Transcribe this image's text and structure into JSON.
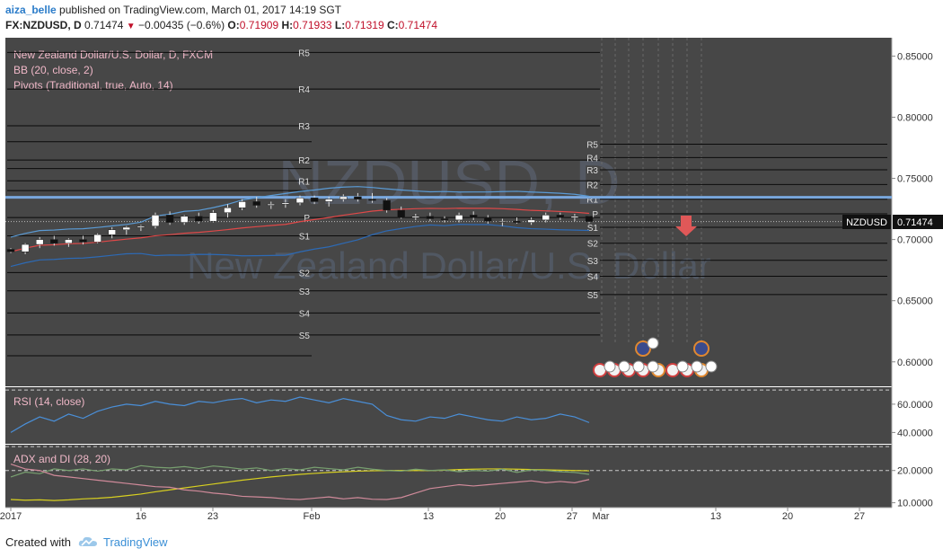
{
  "header": {
    "author": "aiza_belle",
    "published_text": "published on TradingView.com, March 01, 2017 14:19 SGT",
    "symbol": "FX:NZDUSD, D",
    "last": "0.71474",
    "change": "−0.00435 (−0.6%)",
    "o_label": "O:",
    "o_value": "0.71909",
    "h_label": "H:",
    "h_value": "0.71933",
    "l_label": "L:",
    "l_value": "0.71319",
    "c_label": "C:",
    "c_value": "0.71474"
  },
  "legend": {
    "title": "New Zealand Dollar/U.S. Dollar, D, FXCM",
    "bb": "BB (20, close, 2)",
    "pivots": "Pivots (Traditional, true, Auto, 14)"
  },
  "watermark": {
    "big": "NZDUSD, D",
    "small": "New Zealand Dollar/U.S. Dollar"
  },
  "price_badge": {
    "label": "NZDUSD",
    "value": "0.71474"
  },
  "rsi_title": "RSI (14, close)",
  "adx_title": "ADX and DI (28, 20)",
  "colors": {
    "background": "#474747",
    "up_candle": "#ffffff",
    "down_candle": "#111111",
    "bb_upper": "#5b9bd5",
    "bb_middle": "#e04848",
    "bb_lower": "#2d6ab5",
    "rsi": "#4a8fd8",
    "adx": "#d8d020",
    "di_plus": "#78a070",
    "di_minus": "#d08a9a",
    "horizontal_line": "#79a7dd",
    "arrow": "#e05858"
  },
  "footer": {
    "created_with": "Created with",
    "brand": "TradingView"
  },
  "chart_data": [
    {
      "type": "candlestick",
      "title": "New Zealand Dollar/U.S. Dollar, D, FXCM",
      "ylim": [
        0.58,
        0.865
      ],
      "y_ticks": [
        "0.85000",
        "0.80000",
        "0.75000",
        "0.70000",
        "0.65000",
        "0.60000"
      ],
      "x_ticks": [
        "2017",
        "16",
        "23",
        "Feb",
        "13",
        "20",
        "27",
        "Mar",
        "13",
        "20",
        "27"
      ],
      "candles": [
        [
          0.692,
          0.693,
          0.689,
          0.69
        ],
        [
          0.69,
          0.697,
          0.688,
          0.696
        ],
        [
          0.696,
          0.702,
          0.693,
          0.7
        ],
        [
          0.7,
          0.703,
          0.695,
          0.697
        ],
        [
          0.697,
          0.701,
          0.694,
          0.7
        ],
        [
          0.7,
          0.703,
          0.696,
          0.698
        ],
        [
          0.698,
          0.705,
          0.697,
          0.704
        ],
        [
          0.704,
          0.71,
          0.701,
          0.708
        ],
        [
          0.708,
          0.711,
          0.704,
          0.71
        ],
        [
          0.71,
          0.712,
          0.707,
          0.711
        ],
        [
          0.711,
          0.722,
          0.709,
          0.72
        ],
        [
          0.72,
          0.723,
          0.712,
          0.714
        ],
        [
          0.714,
          0.72,
          0.712,
          0.719
        ],
        [
          0.719,
          0.722,
          0.713,
          0.715
        ],
        [
          0.715,
          0.724,
          0.714,
          0.722
        ],
        [
          0.722,
          0.729,
          0.718,
          0.726
        ],
        [
          0.726,
          0.733,
          0.724,
          0.731
        ],
        [
          0.731,
          0.735,
          0.726,
          0.728
        ],
        [
          0.728,
          0.731,
          0.725,
          0.729
        ],
        [
          0.729,
          0.733,
          0.726,
          0.73
        ],
        [
          0.73,
          0.736,
          0.728,
          0.734
        ],
        [
          0.734,
          0.736,
          0.729,
          0.731
        ],
        [
          0.731,
          0.735,
          0.727,
          0.733
        ],
        [
          0.733,
          0.737,
          0.731,
          0.735
        ],
        [
          0.735,
          0.738,
          0.731,
          0.733
        ],
        [
          0.733,
          0.738,
          0.73,
          0.732
        ],
        [
          0.732,
          0.734,
          0.722,
          0.724
        ],
        [
          0.724,
          0.727,
          0.717,
          0.718
        ],
        [
          0.718,
          0.721,
          0.716,
          0.719
        ],
        [
          0.719,
          0.722,
          0.715,
          0.717
        ],
        [
          0.717,
          0.719,
          0.714,
          0.716
        ],
        [
          0.716,
          0.722,
          0.714,
          0.72
        ],
        [
          0.72,
          0.723,
          0.716,
          0.718
        ],
        [
          0.718,
          0.72,
          0.713,
          0.715
        ],
        [
          0.715,
          0.717,
          0.711,
          0.715
        ],
        [
          0.715,
          0.718,
          0.713,
          0.714
        ],
        [
          0.714,
          0.718,
          0.712,
          0.716
        ],
        [
          0.716,
          0.722,
          0.714,
          0.72
        ],
        [
          0.72,
          0.722,
          0.716,
          0.718
        ],
        [
          0.718,
          0.721,
          0.715,
          0.719
        ],
        [
          0.7191,
          0.7193,
          0.7132,
          0.7147
        ]
      ],
      "pivots_left": {
        "R5": 0.853,
        "R4": 0.823,
        "R3": 0.793,
        "R2": 0.765,
        "R1": 0.748,
        "P": 0.718,
        "S1": 0.703,
        "S2": 0.673,
        "S3": 0.658,
        "S4": 0.64,
        "S5": 0.622
      },
      "pivots_right": {
        "R5": 0.778,
        "R4": 0.767,
        "R3": 0.757,
        "R2": 0.745,
        "R1": 0.733,
        "P": 0.721,
        "S1": 0.71,
        "S2": 0.697,
        "S3": 0.683,
        "S4": 0.67,
        "S5": 0.655
      },
      "left_extra_lines": [
        0.78,
        0.758,
        0.74,
        0.605
      ],
      "horizontal_line": 0.7345,
      "last_price": 0.71474
    },
    {
      "type": "line",
      "title": "RSI (14, close)",
      "ylim": [
        32,
        72
      ],
      "y_ticks": [
        "60.0000",
        "40.0000"
      ],
      "bands": [
        70,
        30
      ],
      "values": [
        40,
        46,
        51,
        48,
        53,
        50,
        55,
        58,
        60,
        59,
        62,
        60,
        59,
        62,
        61,
        63,
        64,
        61,
        63,
        62,
        65,
        63,
        61,
        64,
        62,
        60,
        52,
        49,
        48,
        51,
        50,
        53,
        51,
        49,
        48,
        51,
        49,
        50,
        53,
        51,
        47
      ]
    },
    {
      "type": "line",
      "title": "ADX and DI (28, 20)",
      "ylim": [
        8.5,
        28
      ],
      "y_ticks": [
        "20.0000",
        "10.0000"
      ],
      "band": 20,
      "series": [
        {
          "values": [
            11,
            10.8,
            10.9,
            10.7,
            10.9,
            11.2,
            11.4,
            11.7,
            12.2,
            12.7,
            13.4,
            14.0,
            14.6,
            15.2,
            15.8,
            16.4,
            17.0,
            17.5,
            18.0,
            18.4,
            18.8,
            19.1,
            19.4,
            19.6,
            19.8,
            19.9,
            20.0,
            20.0,
            20.0,
            20.0,
            20.1,
            20.3,
            20.4,
            20.5,
            20.5,
            20.4,
            20.3,
            20.2,
            20.1,
            20.0,
            19.9
          ]
        },
        {
          "values": [
            18,
            19.5,
            19,
            20.5,
            20,
            20.5,
            19.8,
            20.5,
            20.2,
            21.5,
            21,
            20.8,
            21.2,
            20.6,
            21.4,
            21,
            20.4,
            20.8,
            20,
            20.6,
            20.2,
            21,
            20.6,
            20.2,
            21,
            20.4,
            20,
            19.8,
            20.4,
            20,
            20.2,
            19.6,
            20,
            19.8,
            20.4,
            19.4,
            20.2,
            20,
            19.6,
            19.4,
            18.8
          ]
        },
        {
          "values": [
            22,
            20.5,
            20,
            18.5,
            18,
            17.5,
            17,
            16.5,
            16,
            15.5,
            15,
            14.8,
            14,
            13.6,
            13,
            12.6,
            12,
            11.8,
            11.6,
            11.2,
            11,
            11.4,
            11.8,
            11.2,
            11.6,
            11.1,
            11,
            11.6,
            13,
            14.4,
            15,
            15.6,
            15.2,
            15.6,
            16,
            16.4,
            16.8,
            16.2,
            16.6,
            16.2,
            17.2
          ]
        }
      ]
    }
  ]
}
